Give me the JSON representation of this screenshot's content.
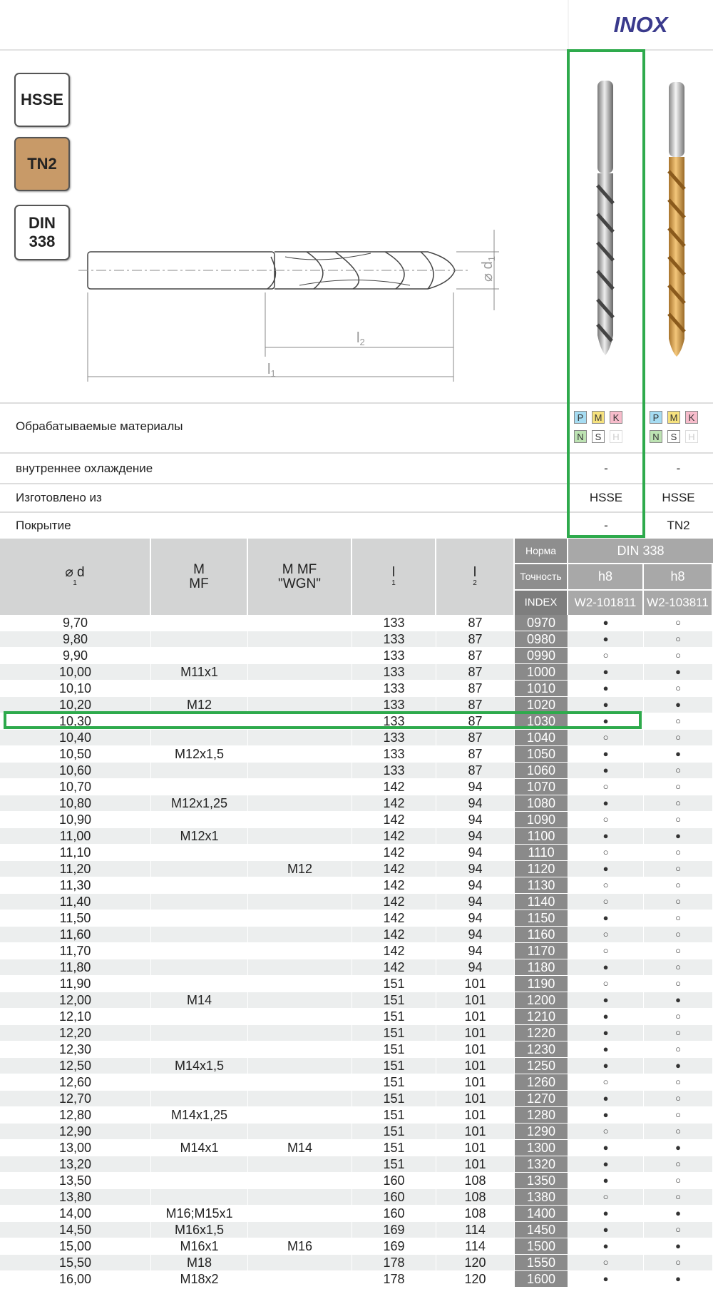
{
  "header": {
    "title": "INOX"
  },
  "badges": [
    "HSSE",
    "TN2",
    "DIN 338"
  ],
  "drawing": {
    "d1": {
      "text": "⌀ d",
      "sub": "1"
    },
    "l2": {
      "text": "l",
      "sub": "2"
    },
    "l1": {
      "text": "l",
      "sub": "1"
    }
  },
  "properties": {
    "materials": {
      "label": "Обрабатываемые материалы",
      "columns": [
        [
          "P",
          "M",
          "K",
          "N",
          "S",
          "H"
        ],
        [
          "P",
          "M",
          "K",
          "N",
          "S",
          "H"
        ]
      ]
    },
    "rows": [
      {
        "label": "внутреннее охлаждение",
        "values": [
          "-",
          "-"
        ]
      },
      {
        "label": "Изготовлено из",
        "values": [
          "HSSE",
          "HSSE"
        ]
      },
      {
        "label": "Покрытие",
        "values": [
          "-",
          "TN2"
        ]
      }
    ]
  },
  "table": {
    "columns": [
      {
        "text": "⌀ d",
        "sub": "1"
      },
      {
        "lines": [
          "M",
          "MF"
        ]
      },
      {
        "lines": [
          "M MF",
          "\"WGN\""
        ]
      },
      {
        "text": "l",
        "sub": "1"
      },
      {
        "text": "l",
        "sub": "2"
      }
    ],
    "norm": {
      "label": "Норма",
      "value": "DIN 338"
    },
    "precision": {
      "label": "Точность",
      "values": [
        "h8",
        "h8"
      ]
    },
    "index": {
      "label": "INDEX",
      "values": [
        "W2-101811",
        "W2-103811"
      ]
    },
    "rows": [
      [
        "9,70",
        null,
        null,
        "133",
        "87",
        "0970",
        "●",
        "○"
      ],
      [
        "9,80",
        null,
        null,
        "133",
        "87",
        "0980",
        "●",
        "○"
      ],
      [
        "9,90",
        null,
        null,
        "133",
        "87",
        "0990",
        "○",
        "○"
      ],
      [
        "10,00",
        "M11x1",
        null,
        "133",
        "87",
        "1000",
        "●",
        "●"
      ],
      [
        "10,10",
        null,
        null,
        "133",
        "87",
        "1010",
        "●",
        "○"
      ],
      [
        "10,20",
        "M12",
        null,
        "133",
        "87",
        "1020",
        "●",
        "●"
      ],
      [
        "10,30",
        null,
        null,
        "133",
        "87",
        "1030",
        "●",
        "○"
      ],
      [
        "10,40",
        null,
        null,
        "133",
        "87",
        "1040",
        "○",
        "○"
      ],
      [
        "10,50",
        "M12x1,5",
        null,
        "133",
        "87",
        "1050",
        "●",
        "●"
      ],
      [
        "10,60",
        null,
        null,
        "133",
        "87",
        "1060",
        "●",
        "○"
      ],
      [
        "10,70",
        null,
        null,
        "142",
        "94",
        "1070",
        "○",
        "○"
      ],
      [
        "10,80",
        "M12x1,25",
        null,
        "142",
        "94",
        "1080",
        "●",
        "○"
      ],
      [
        "10,90",
        null,
        null,
        "142",
        "94",
        "1090",
        "○",
        "○"
      ],
      [
        "11,00",
        "M12x1",
        null,
        "142",
        "94",
        "1100",
        "●",
        "●"
      ],
      [
        "11,10",
        null,
        null,
        "142",
        "94",
        "1110",
        "○",
        "○"
      ],
      [
        "11,20",
        null,
        "M12",
        "142",
        "94",
        "1120",
        "●",
        "○"
      ],
      [
        "11,30",
        null,
        null,
        "142",
        "94",
        "1130",
        "○",
        "○"
      ],
      [
        "11,40",
        null,
        null,
        "142",
        "94",
        "1140",
        "○",
        "○"
      ],
      [
        "11,50",
        null,
        null,
        "142",
        "94",
        "1150",
        "●",
        "○"
      ],
      [
        "11,60",
        null,
        null,
        "142",
        "94",
        "1160",
        "○",
        "○"
      ],
      [
        "11,70",
        null,
        null,
        "142",
        "94",
        "1170",
        "○",
        "○"
      ],
      [
        "11,80",
        null,
        null,
        "142",
        "94",
        "1180",
        "●",
        "○"
      ],
      [
        "11,90",
        null,
        null,
        "151",
        "101",
        "1190",
        "○",
        "○"
      ],
      [
        "12,00",
        "M14",
        null,
        "151",
        "101",
        "1200",
        "●",
        "●"
      ],
      [
        "12,10",
        null,
        null,
        "151",
        "101",
        "1210",
        "●",
        "○"
      ],
      [
        "12,20",
        null,
        null,
        "151",
        "101",
        "1220",
        "●",
        "○"
      ],
      [
        "12,30",
        null,
        null,
        "151",
        "101",
        "1230",
        "●",
        "○"
      ],
      [
        "12,50",
        "M14x1,5",
        null,
        "151",
        "101",
        "1250",
        "●",
        "●"
      ],
      [
        "12,60",
        null,
        null,
        "151",
        "101",
        "1260",
        "○",
        "○"
      ],
      [
        "12,70",
        null,
        null,
        "151",
        "101",
        "1270",
        "●",
        "○"
      ],
      [
        "12,80",
        "M14x1,25",
        null,
        "151",
        "101",
        "1280",
        "●",
        "○"
      ],
      [
        "12,90",
        null,
        null,
        "151",
        "101",
        "1290",
        "○",
        "○"
      ],
      [
        "13,00",
        "M14x1",
        "M14",
        "151",
        "101",
        "1300",
        "●",
        "●"
      ],
      [
        "13,20",
        null,
        null,
        "151",
        "101",
        "1320",
        "●",
        "○"
      ],
      [
        "13,50",
        null,
        null,
        "160",
        "108",
        "1350",
        "●",
        "○"
      ],
      [
        "13,80",
        null,
        null,
        "160",
        "108",
        "1380",
        "○",
        "○"
      ],
      [
        "14,00",
        "M16;M15x1",
        null,
        "160",
        "108",
        "1400",
        "●",
        "●"
      ],
      [
        "14,50",
        "M16x1,5",
        null,
        "169",
        "114",
        "1450",
        "●",
        "○"
      ],
      [
        "15,00",
        "M16x1",
        "M16",
        "169",
        "114",
        "1500",
        "●",
        "●"
      ],
      [
        "15,50",
        "M18",
        null,
        "178",
        "120",
        "1550",
        "○",
        "○"
      ],
      [
        "16,00",
        "M18x2",
        null,
        "178",
        "120",
        "1600",
        "●",
        "●"
      ]
    ]
  }
}
